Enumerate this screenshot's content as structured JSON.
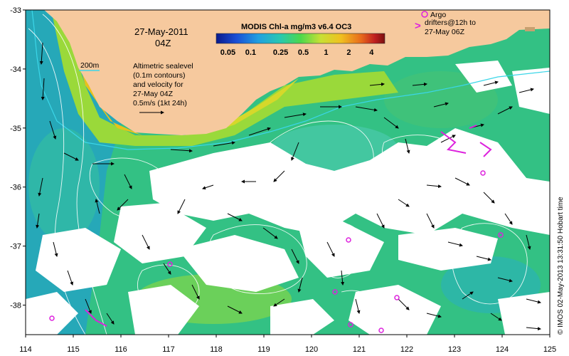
{
  "map": {
    "date_line": "27-May-2011",
    "time_line": "04Z",
    "isobath_label": "200m",
    "altimetry_lines": [
      "Altimetric sealevel",
      "(0.1m contours)",
      "and velocity for",
      "27-May 04Z",
      "0.5m/s (1kt 24h)"
    ],
    "argo_label": "Argo",
    "drifters_lines": [
      "drifters@12h to",
      "27-May 06Z"
    ],
    "drifter_glyph": ">",
    "credit": "© IMOS 02-May-2013 13:31:50 Hobart time",
    "colors": {
      "land": "#f6c99e",
      "cloud": "#ffffff",
      "ocean_low": "#2aa8c7",
      "ocean_mid": "#30c87a",
      "ocean_high": "#9ad93a",
      "coastal_bloom": "#e8c21a",
      "contour": "#ffffff",
      "isobath": "#3bd6e8",
      "drifter": "#dd22dd",
      "vector": "#000000"
    }
  },
  "colorbar": {
    "title": "MODIS Chl-a mg/m3 v6.4 OC3",
    "ticks": [
      "0.05",
      "0.1",
      "0.25",
      "0.5",
      "1",
      "2",
      "4"
    ],
    "stops": [
      "#0a1a8c",
      "#1a4fd6",
      "#20a0e0",
      "#28c8b0",
      "#4cd84c",
      "#c8e034",
      "#f0c020",
      "#e86a1c",
      "#c02020",
      "#7a1010"
    ]
  },
  "axes": {
    "x_ticks": [
      "114",
      "115",
      "116",
      "117",
      "118",
      "119",
      "120",
      "121",
      "122",
      "123",
      "124",
      "125"
    ],
    "y_ticks": [
      "-33",
      "-34",
      "-35",
      "-36",
      "-37",
      "-38"
    ],
    "x_range": [
      114,
      125
    ],
    "y_range": [
      -38.5,
      -33
    ]
  }
}
